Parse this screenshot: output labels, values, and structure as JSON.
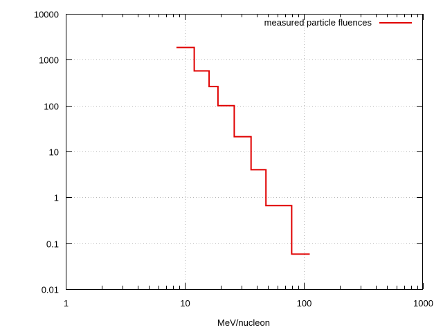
{
  "chart_data": {
    "type": "line",
    "style": "step",
    "title": "",
    "xlabel": "MeV/nucleon",
    "ylabel": "",
    "x_scale": "log",
    "y_scale": "log",
    "xlim": [
      1,
      1000
    ],
    "ylim": [
      0.01,
      10000
    ],
    "x_ticks": [
      "1",
      "10",
      "100",
      "1000"
    ],
    "y_ticks": [
      "0.01",
      "0.1",
      "1",
      "10",
      "100",
      "1000",
      "10000"
    ],
    "grid": true,
    "legend_position": "top-right",
    "series": [
      {
        "name": "measured particle fluences",
        "color": "#e00000",
        "steps": [
          {
            "x_start": 8.5,
            "x_end": 12,
            "y": 1850
          },
          {
            "x_start": 12,
            "x_end": 16,
            "y": 570
          },
          {
            "x_start": 16,
            "x_end": 19,
            "y": 260
          },
          {
            "x_start": 19,
            "x_end": 26,
            "y": 100
          },
          {
            "x_start": 26,
            "x_end": 36,
            "y": 21
          },
          {
            "x_start": 36,
            "x_end": 48,
            "y": 4
          },
          {
            "x_start": 48,
            "x_end": 79,
            "y": 0.66
          },
          {
            "x_start": 79,
            "x_end": 112,
            "y": 0.058
          }
        ]
      }
    ]
  }
}
